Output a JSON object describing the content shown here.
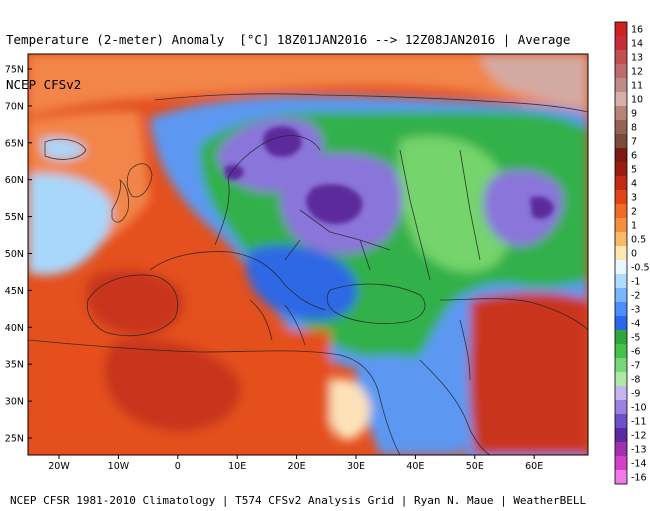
{
  "header": {
    "line1": "Temperature (2-meter) Anomaly  [°C] 18Z01JAN2016 --> 12Z08JAN2016 | Average",
    "line2": "NCEP CFSv2"
  },
  "footer": {
    "text": "NCEP CFSR 1981-2010 Climatology | T574 CFSv2 Analysis Grid | Ryan N. Maue | WeatherBELL"
  },
  "lat_labels": [
    "75N",
    "70N",
    "65N",
    "60N",
    "55N",
    "50N",
    "45N",
    "40N",
    "35N",
    "30N",
    "25N"
  ],
  "lon_labels": [
    "20W",
    "10W",
    "0",
    "10E",
    "20E",
    "30E",
    "40E",
    "50E",
    "60E"
  ],
  "colorbar": {
    "labels": [
      "16",
      "14",
      "13",
      "12",
      "11",
      "10",
      "9",
      "8",
      "7",
      "6",
      "5",
      "4",
      "3",
      "2",
      "1",
      "0.5",
      "0",
      "-0.5",
      "-1",
      "-2",
      "-3",
      "-4",
      "-5",
      "-6",
      "-7",
      "-8",
      "-9",
      "-10",
      "-11",
      "-12",
      "-13",
      "-14",
      "-16"
    ],
    "colors": [
      "#cc2222",
      "#c62d3a",
      "#c0504f",
      "#be6b6b",
      "#bd8a86",
      "#d6b0a8",
      "#b88478",
      "#966254",
      "#7a4c3c",
      "#7a1a12",
      "#9a1e10",
      "#c22c14",
      "#e04418",
      "#f06a28",
      "#f58f40",
      "#fbb868",
      "#fde7b0",
      "#e8f6ff",
      "#b0dcff",
      "#7ab6ff",
      "#4a8eff",
      "#2a66ee",
      "#2ea83a",
      "#44c24a",
      "#78d878",
      "#aee8a8",
      "#c6b6f0",
      "#9a80e0",
      "#6c52c8",
      "#5a2aa0",
      "#a030b0",
      "#d040c8",
      "#f07ae8"
    ]
  },
  "map_colors": {
    "warm_dark": "#c8361e",
    "warm": "#e4501e",
    "warm_light": "#f2854a",
    "peach": "#f7b174",
    "neutral": "#fde2b8",
    "cool_light": "#a9d7fb",
    "cool": "#5b98f2",
    "cool_dark": "#2f68e4",
    "green": "#32b04a",
    "green_light": "#74d46c",
    "purple": "#8a74da",
    "purple_dark": "#5b2c9c",
    "arctic": "#d3aaa2"
  }
}
